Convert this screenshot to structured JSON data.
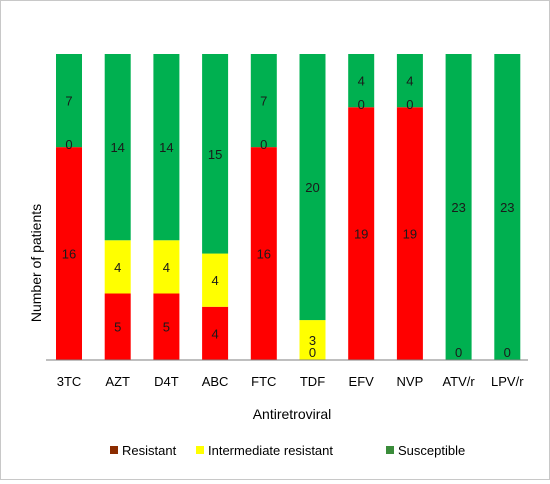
{
  "chart_data": {
    "type": "bar",
    "stacked": true,
    "xlabel": "Antiretroviral",
    "ylabel": "Number of patients",
    "categories": [
      "3TC",
      "AZT",
      "D4T",
      "ABC",
      "FTC",
      "TDF",
      "EFV",
      "NVP",
      "ATV/r",
      "LPV/r"
    ],
    "series": [
      {
        "name": "Resistant",
        "color": "#ff0000",
        "values": [
          16,
          5,
          5,
          4,
          16,
          0,
          19,
          19,
          0,
          0
        ]
      },
      {
        "name": "Intermediate resistant",
        "color": "#ffff00",
        "values": [
          0,
          4,
          4,
          4,
          0,
          3,
          0,
          0,
          0,
          0
        ]
      },
      {
        "name": "Susceptible",
        "color": "#00b050",
        "values": [
          7,
          14,
          14,
          15,
          7,
          20,
          4,
          4,
          23,
          23
        ]
      }
    ],
    "segment_labels": [
      [
        "16",
        "0",
        "7"
      ],
      [
        "5",
        "4",
        "14"
      ],
      [
        "5",
        "4",
        "14"
      ],
      [
        "4",
        "4",
        "15"
      ],
      [
        "16",
        "0",
        "7"
      ],
      [
        "0",
        "3",
        "20"
      ],
      [
        "19",
        "0",
        "4"
      ],
      [
        "19",
        "0",
        "4"
      ],
      [
        "0",
        "",
        "23"
      ],
      [
        "0",
        "",
        "23"
      ]
    ],
    "ylim": [
      0,
      23
    ],
    "grid": false,
    "legend_position": "bottom",
    "legend_swatch_colors": [
      "#8b2c00",
      "#ffff00",
      "#3a8c3a"
    ]
  }
}
